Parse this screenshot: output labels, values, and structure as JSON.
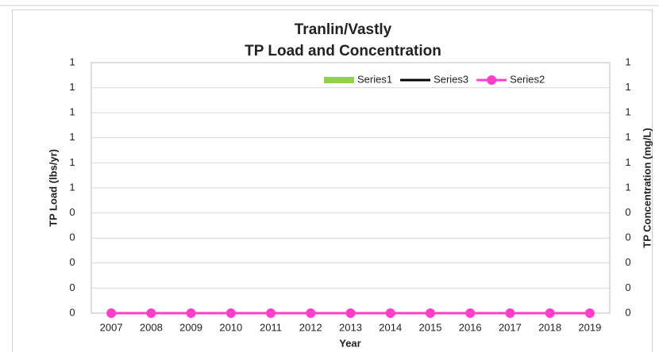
{
  "chart_data": {
    "type": "combo",
    "title": [
      "Tranlin/Vastly",
      "TP Load and Concentration"
    ],
    "x_label": "Year",
    "y_label": "TP Load (lbs/yr)",
    "y2_label": "TP Concentration (mg/L)",
    "categories": [
      "2007",
      "2008",
      "2009",
      "2010",
      "2011",
      "2012",
      "2013",
      "2014",
      "2015",
      "2016",
      "2017",
      "2018",
      "2019"
    ],
    "series": [
      {
        "name": "Series1",
        "type": "bar",
        "color": "#92d050",
        "axis": "y",
        "values": [
          0,
          0,
          0,
          0,
          0,
          0,
          0,
          0,
          0,
          0,
          0,
          0,
          0
        ]
      },
      {
        "name": "Series3",
        "type": "line",
        "color": "#000000",
        "axis": "y2",
        "values": [
          0,
          0,
          0,
          0,
          0,
          0,
          0,
          0,
          0,
          0,
          0,
          0,
          0
        ]
      },
      {
        "name": "Series2",
        "type": "line",
        "marker": true,
        "color": "#ff3fc8",
        "axis": "y2",
        "values": [
          0,
          0,
          0,
          0,
          0,
          0,
          0,
          0,
          0,
          0,
          0,
          0,
          0
        ]
      }
    ],
    "ylim": [
      0,
      1
    ],
    "yticks": [
      0,
      {
        "value": 0.1,
        "label": "0"
      },
      {
        "value": 0.2,
        "label": "0"
      },
      {
        "value": 0.3,
        "label": "0"
      },
      {
        "value": 0.4,
        "label": "0"
      },
      {
        "value": 0.5,
        "label": "1"
      },
      {
        "value": 0.6,
        "label": "1"
      },
      {
        "value": 0.7,
        "label": "1"
      },
      {
        "value": 0.8,
        "label": "1"
      },
      {
        "value": 0.9,
        "label": "1"
      },
      1
    ],
    "y2lim": [
      0,
      1
    ],
    "y2ticks": [
      0,
      {
        "value": 0.1,
        "label": "0"
      },
      {
        "value": 0.2,
        "label": "0"
      },
      {
        "value": 0.3,
        "label": "0"
      },
      {
        "value": 0.4,
        "label": "0"
      },
      {
        "value": 0.5,
        "label": "1"
      },
      {
        "value": 0.6,
        "label": "1"
      },
      {
        "value": 0.7,
        "label": "1"
      },
      {
        "value": 0.8,
        "label": "1"
      },
      {
        "value": 0.9,
        "label": "1"
      },
      1
    ],
    "grid": true,
    "legend": "top-right"
  }
}
